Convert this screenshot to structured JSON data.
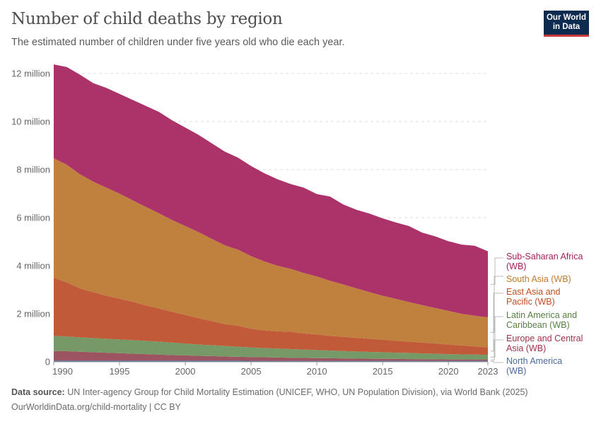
{
  "header": {
    "title": "Number of child deaths by region",
    "subtitle": "The estimated number of children under five years old who die each year.",
    "logo": "Our World in Data"
  },
  "footer": {
    "source_label": "Data source:",
    "source": "UN Inter-agency Group for Child Mortality Estimation (UNICEF, WHO, UN Population Division), via World Bank (2025)",
    "url": "OurWorldinData.org/child-mortality | CC BY"
  },
  "chart_data": {
    "type": "area",
    "stacked": true,
    "title": "Number of child deaths by region",
    "xlim": [
      1990,
      2023
    ],
    "ylim": [
      0,
      12000000
    ],
    "y_ticks": [
      {
        "v": 0,
        "label": "0"
      },
      {
        "v": 2000000,
        "label": "2 million"
      },
      {
        "v": 4000000,
        "label": "4 million"
      },
      {
        "v": 6000000,
        "label": "6 million"
      },
      {
        "v": 8000000,
        "label": "8 million"
      },
      {
        "v": 10000000,
        "label": "10 million"
      },
      {
        "v": 12000000,
        "label": "12 million"
      }
    ],
    "x_ticks": [
      1990,
      1995,
      2000,
      2005,
      2010,
      2015,
      2020,
      2023
    ],
    "grid": "horizontal dashed",
    "legend": "right, end labels",
    "x": [
      1990,
      1991,
      1992,
      1993,
      1994,
      1995,
      1996,
      1997,
      1998,
      1999,
      2000,
      2001,
      2002,
      2003,
      2004,
      2005,
      2006,
      2007,
      2008,
      2009,
      2010,
      2011,
      2012,
      2013,
      2014,
      2015,
      2016,
      2017,
      2018,
      2019,
      2020,
      2021,
      2022,
      2023
    ],
    "unit_multiplier": 1000000,
    "series": [
      {
        "name": "North America (WB)",
        "fill": "#4c6a9c",
        "text": "#4c6a9c",
        "values": [
          0.05,
          0.05,
          0.05,
          0.05,
          0.05,
          0.05,
          0.05,
          0.05,
          0.05,
          0.05,
          0.05,
          0.05,
          0.05,
          0.05,
          0.05,
          0.04,
          0.04,
          0.04,
          0.04,
          0.04,
          0.04,
          0.04,
          0.04,
          0.04,
          0.04,
          0.04,
          0.04,
          0.04,
          0.04,
          0.04,
          0.04,
          0.04,
          0.04,
          0.04
        ]
      },
      {
        "name": "Europe and Central Asia (WB)",
        "fill": "#9b5460",
        "text": "#a0334c",
        "values": [
          0.4,
          0.39,
          0.37,
          0.35,
          0.33,
          0.31,
          0.29,
          0.27,
          0.25,
          0.23,
          0.22,
          0.2,
          0.19,
          0.17,
          0.16,
          0.16,
          0.15,
          0.14,
          0.13,
          0.12,
          0.115,
          0.11,
          0.1,
          0.095,
          0.09,
          0.085,
          0.08,
          0.075,
          0.07,
          0.065,
          0.06,
          0.06,
          0.06,
          0.06
        ]
      },
      {
        "name": "Latin America and Caribbean (WB)",
        "fill": "#769a67",
        "text": "#578145",
        "values": [
          0.63,
          0.61,
          0.6,
          0.59,
          0.58,
          0.57,
          0.56,
          0.55,
          0.54,
          0.52,
          0.49,
          0.47,
          0.45,
          0.44,
          0.42,
          0.4,
          0.38,
          0.37,
          0.36,
          0.35,
          0.335,
          0.32,
          0.31,
          0.295,
          0.28,
          0.275,
          0.26,
          0.255,
          0.24,
          0.235,
          0.22,
          0.21,
          0.2,
          0.19
        ]
      },
      {
        "name": "East Asia and Pacific (WB)",
        "fill": "#c05a38",
        "text": "#c14e1f",
        "values": [
          2.42,
          2.25,
          2.03,
          1.91,
          1.79,
          1.7,
          1.6,
          1.48,
          1.38,
          1.28,
          1.19,
          1.1,
          1.01,
          0.91,
          0.87,
          0.78,
          0.74,
          0.72,
          0.72,
          0.67,
          0.65,
          0.61,
          0.59,
          0.57,
          0.55,
          0.52,
          0.5,
          0.47,
          0.45,
          0.42,
          0.4,
          0.37,
          0.34,
          0.31
        ]
      },
      {
        "name": "South Asia (WB)",
        "fill": "#c0813f",
        "text": "#be7a2c",
        "values": [
          4.97,
          4.9,
          4.75,
          4.6,
          4.5,
          4.37,
          4.22,
          4.1,
          3.96,
          3.82,
          3.7,
          3.58,
          3.42,
          3.28,
          3.17,
          3.02,
          2.87,
          2.73,
          2.62,
          2.52,
          2.41,
          2.29,
          2.18,
          2.06,
          1.94,
          1.83,
          1.74,
          1.65,
          1.56,
          1.48,
          1.4,
          1.32,
          1.28,
          1.25
        ]
      },
      {
        "name": "Sub-Saharan Africa (WB)",
        "fill": "#ac3369",
        "text": "#a51f5c",
        "values": [
          3.91,
          4.07,
          4.15,
          4.1,
          4.15,
          4.15,
          4.18,
          4.2,
          4.22,
          4.15,
          4.1,
          4.05,
          3.98,
          3.9,
          3.83,
          3.75,
          3.67,
          3.6,
          3.53,
          3.55,
          3.43,
          3.51,
          3.33,
          3.27,
          3.27,
          3.22,
          3.18,
          3.16,
          3.02,
          2.98,
          2.9,
          2.88,
          2.91,
          2.75
        ]
      }
    ]
  }
}
